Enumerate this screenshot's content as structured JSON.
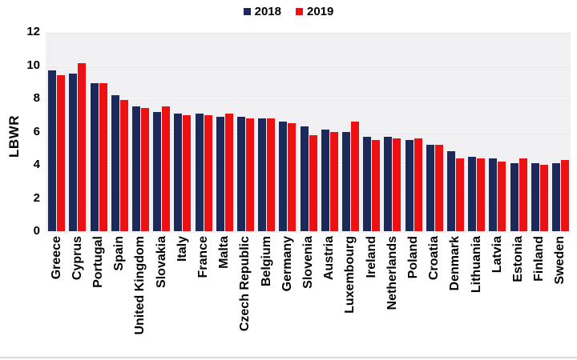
{
  "chart_data": {
    "type": "bar",
    "title": "",
    "xlabel": "",
    "ylabel": "LBWR",
    "ylim": [
      0,
      12
    ],
    "yticks": [
      0,
      2,
      4,
      6,
      8,
      10,
      12
    ],
    "grid": true,
    "legend_position": "top-center",
    "plot_background": "#f0f0f2",
    "categories": [
      "Greece",
      "Cyprus",
      "Portugal",
      "Spain",
      "United Kingdom",
      "Slovakia",
      "Italy",
      "France",
      "Malta",
      "Czech Republic",
      "Belgium",
      "Germany",
      "Slovenia",
      "Austria",
      "Luxembourg",
      "Ireland",
      "Netherlands",
      "Poland",
      "Croatia",
      "Denmark",
      "Lithuania",
      "Latvia",
      "Estonia",
      "Finland",
      "Sweden"
    ],
    "series": [
      {
        "name": "2018",
        "color": "#1b2a5a",
        "values": [
          9.7,
          9.5,
          8.9,
          8.2,
          7.5,
          7.2,
          7.1,
          7.1,
          6.9,
          6.9,
          6.8,
          6.6,
          6.3,
          6.1,
          6.0,
          5.7,
          5.7,
          5.5,
          5.2,
          4.8,
          4.5,
          4.4,
          4.1,
          4.1,
          4.1
        ]
      },
      {
        "name": "2019",
        "color": "#ee1111",
        "values": [
          9.4,
          10.1,
          8.9,
          7.9,
          7.4,
          7.5,
          7.0,
          7.0,
          7.1,
          6.8,
          6.8,
          6.5,
          5.8,
          6.0,
          6.6,
          5.5,
          5.6,
          5.6,
          5.2,
          4.4,
          4.4,
          4.2,
          4.4,
          4.0,
          4.3
        ]
      }
    ]
  }
}
